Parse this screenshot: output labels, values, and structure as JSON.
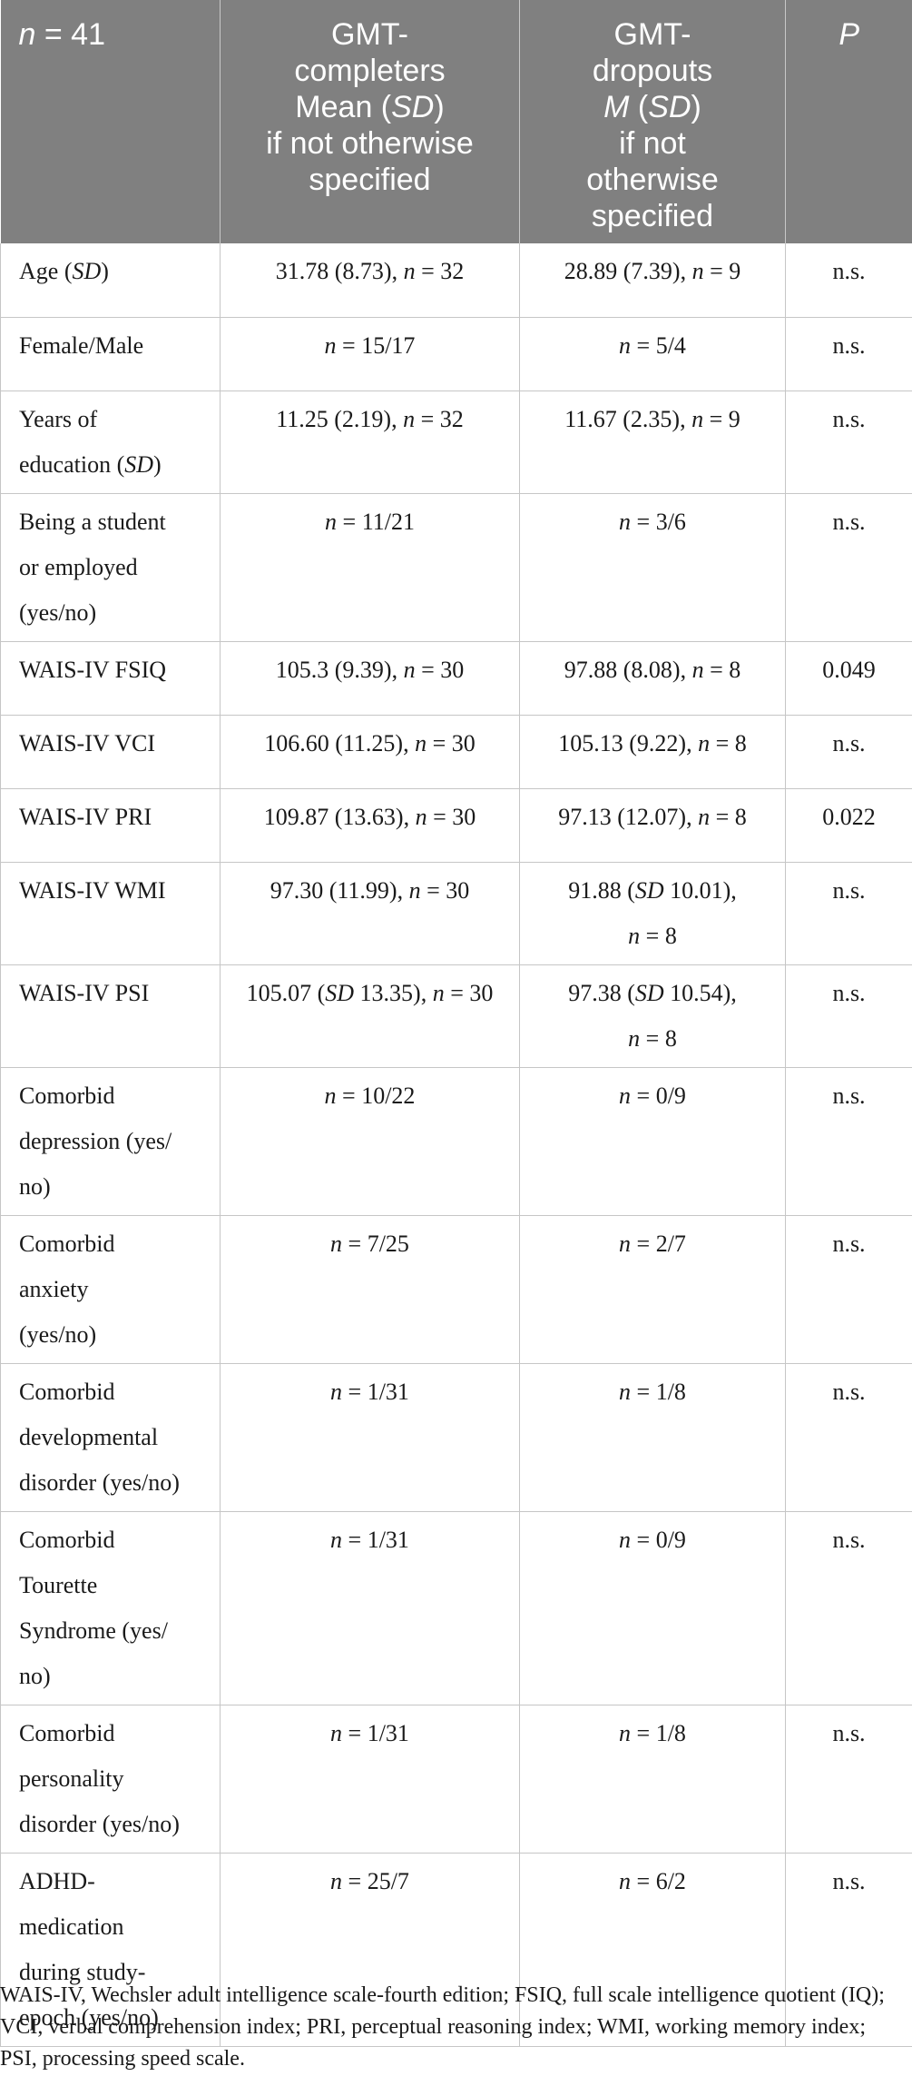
{
  "table": {
    "headers": [
      {
        "parts": [
          {
            "t": "n",
            "i": true
          },
          {
            "t": " = 41",
            "i": false
          }
        ]
      },
      {
        "parts": [
          {
            "t": "GMT-\ncompleters\nMean (",
            "i": false
          },
          {
            "t": "SD",
            "i": true
          },
          {
            "t": ")\nif not otherwise\nspecified",
            "i": false
          }
        ]
      },
      {
        "parts": [
          {
            "t": "GMT-\ndropouts\n",
            "i": false
          },
          {
            "t": "M",
            "i": true
          },
          {
            "t": " (",
            "i": false
          },
          {
            "t": "SD",
            "i": true
          },
          {
            "t": ")\nif not\notherwise\nspecified",
            "i": false
          }
        ]
      },
      {
        "parts": [
          {
            "t": "P",
            "i": true
          }
        ]
      }
    ],
    "rows": [
      [
        [
          {
            "t": "Age (",
            "i": false
          },
          {
            "t": "SD",
            "i": true
          },
          {
            "t": ")",
            "i": false
          }
        ],
        [
          {
            "t": "31.78 (8.73), ",
            "i": false
          },
          {
            "t": "n",
            "i": true
          },
          {
            "t": " = 32",
            "i": false
          }
        ],
        [
          {
            "t": "28.89 (7.39), ",
            "i": false
          },
          {
            "t": "n",
            "i": true
          },
          {
            "t": " = 9",
            "i": false
          }
        ],
        [
          {
            "t": "n.s.",
            "i": false
          }
        ]
      ],
      [
        [
          {
            "t": "Female/Male",
            "i": false
          }
        ],
        [
          {
            "t": "n",
            "i": true
          },
          {
            "t": " = 15/17",
            "i": false
          }
        ],
        [
          {
            "t": "n",
            "i": true
          },
          {
            "t": " = 5/4",
            "i": false
          }
        ],
        [
          {
            "t": "n.s.",
            "i": false
          }
        ]
      ],
      [
        [
          {
            "t": "Years of\neducation (",
            "i": false
          },
          {
            "t": "SD",
            "i": true
          },
          {
            "t": ")",
            "i": false
          }
        ],
        [
          {
            "t": "11.25 (2.19), ",
            "i": false
          },
          {
            "t": "n",
            "i": true
          },
          {
            "t": " = 32",
            "i": false
          }
        ],
        [
          {
            "t": "11.67 (2.35), ",
            "i": false
          },
          {
            "t": "n",
            "i": true
          },
          {
            "t": " = 9",
            "i": false
          }
        ],
        [
          {
            "t": "n.s.",
            "i": false
          }
        ]
      ],
      [
        [
          {
            "t": "Being a student\nor employed\n(yes/no)",
            "i": false
          }
        ],
        [
          {
            "t": "n",
            "i": true
          },
          {
            "t": " = 11/21",
            "i": false
          }
        ],
        [
          {
            "t": "n",
            "i": true
          },
          {
            "t": " = 3/6",
            "i": false
          }
        ],
        [
          {
            "t": "n.s.",
            "i": false
          }
        ]
      ],
      [
        [
          {
            "t": "WAIS-IV FSIQ",
            "i": false
          }
        ],
        [
          {
            "t": "105.3 (9.39), ",
            "i": false
          },
          {
            "t": "n",
            "i": true
          },
          {
            "t": " = 30",
            "i": false
          }
        ],
        [
          {
            "t": "97.88 (8.08), ",
            "i": false
          },
          {
            "t": "n",
            "i": true
          },
          {
            "t": " = 8",
            "i": false
          }
        ],
        [
          {
            "t": "0.049",
            "i": false
          }
        ]
      ],
      [
        [
          {
            "t": "WAIS-IV VCI",
            "i": false
          }
        ],
        [
          {
            "t": "106.60 (11.25), ",
            "i": false
          },
          {
            "t": "n",
            "i": true
          },
          {
            "t": " = 30",
            "i": false
          }
        ],
        [
          {
            "t": "105.13 (9.22), ",
            "i": false
          },
          {
            "t": "n",
            "i": true
          },
          {
            "t": " = 8",
            "i": false
          }
        ],
        [
          {
            "t": "n.s.",
            "i": false
          }
        ]
      ],
      [
        [
          {
            "t": "WAIS-IV PRI",
            "i": false
          }
        ],
        [
          {
            "t": "109.87 (13.63), ",
            "i": false
          },
          {
            "t": "n",
            "i": true
          },
          {
            "t": " = 30",
            "i": false
          }
        ],
        [
          {
            "t": "97.13 (12.07), ",
            "i": false
          },
          {
            "t": "n",
            "i": true
          },
          {
            "t": " = 8",
            "i": false
          }
        ],
        [
          {
            "t": "0.022",
            "i": false
          }
        ]
      ],
      [
        [
          {
            "t": "WAIS-IV WMI",
            "i": false
          }
        ],
        [
          {
            "t": "97.30 (11.99), ",
            "i": false
          },
          {
            "t": "n",
            "i": true
          },
          {
            "t": " = 30",
            "i": false
          }
        ],
        [
          {
            "t": "91.88 (",
            "i": false
          },
          {
            "t": "SD",
            "i": true
          },
          {
            "t": " 10.01),\n",
            "i": false
          },
          {
            "t": "n",
            "i": true
          },
          {
            "t": " = 8",
            "i": false
          }
        ],
        [
          {
            "t": "n.s.",
            "i": false
          }
        ]
      ],
      [
        [
          {
            "t": "WAIS-IV PSI",
            "i": false
          }
        ],
        [
          {
            "t": "105.07 (",
            "i": false
          },
          {
            "t": "SD",
            "i": true
          },
          {
            "t": " 13.35), ",
            "i": false
          },
          {
            "t": "n",
            "i": true
          },
          {
            "t": " = 30",
            "i": false
          }
        ],
        [
          {
            "t": "97.38 (",
            "i": false
          },
          {
            "t": "SD",
            "i": true
          },
          {
            "t": " 10.54),\n",
            "i": false
          },
          {
            "t": "n",
            "i": true
          },
          {
            "t": " = 8",
            "i": false
          }
        ],
        [
          {
            "t": "n.s.",
            "i": false
          }
        ]
      ],
      [
        [
          {
            "t": "Comorbid\ndepression (yes/\nno)",
            "i": false
          }
        ],
        [
          {
            "t": "n",
            "i": true
          },
          {
            "t": " = 10/22",
            "i": false
          }
        ],
        [
          {
            "t": "n",
            "i": true
          },
          {
            "t": " = 0/9",
            "i": false
          }
        ],
        [
          {
            "t": "n.s.",
            "i": false
          }
        ]
      ],
      [
        [
          {
            "t": "Comorbid\nanxiety\n(yes/no)",
            "i": false
          }
        ],
        [
          {
            "t": "n",
            "i": true
          },
          {
            "t": " = 7/25",
            "i": false
          }
        ],
        [
          {
            "t": "n",
            "i": true
          },
          {
            "t": " = 2/7",
            "i": false
          }
        ],
        [
          {
            "t": "n.s.",
            "i": false
          }
        ]
      ],
      [
        [
          {
            "t": "Comorbid\ndevelopmental\ndisorder (yes/no)",
            "i": false
          }
        ],
        [
          {
            "t": "n",
            "i": true
          },
          {
            "t": " = 1/31",
            "i": false
          }
        ],
        [
          {
            "t": "n",
            "i": true
          },
          {
            "t": " = 1/8",
            "i": false
          }
        ],
        [
          {
            "t": "n.s.",
            "i": false
          }
        ]
      ],
      [
        [
          {
            "t": "Comorbid\nTourette\nSyndrome (yes/\nno)",
            "i": false
          }
        ],
        [
          {
            "t": "n",
            "i": true
          },
          {
            "t": " = 1/31",
            "i": false
          }
        ],
        [
          {
            "t": "n",
            "i": true
          },
          {
            "t": " = 0/9",
            "i": false
          }
        ],
        [
          {
            "t": "n.s.",
            "i": false
          }
        ]
      ],
      [
        [
          {
            "t": "Comorbid\npersonality\ndisorder (yes/no)",
            "i": false
          }
        ],
        [
          {
            "t": "n",
            "i": true
          },
          {
            "t": " = 1/31",
            "i": false
          }
        ],
        [
          {
            "t": "n",
            "i": true
          },
          {
            "t": " = 1/8",
            "i": false
          }
        ],
        [
          {
            "t": "n.s.",
            "i": false
          }
        ]
      ],
      [
        [
          {
            "t": "ADHD-\nmedication\nduring study-\nepoch (yes/no)",
            "i": false
          }
        ],
        [
          {
            "t": "n",
            "i": true
          },
          {
            "t": " = 25/7",
            "i": false
          }
        ],
        [
          {
            "t": "n",
            "i": true
          },
          {
            "t": " = 6/2",
            "i": false
          }
        ],
        [
          {
            "t": "n.s.",
            "i": false
          }
        ]
      ]
    ]
  },
  "footnote": "WAIS-IV, Wechsler adult intelligence scale-fourth edition; FSIQ, full scale intelligence quotient (IQ); VCI, verbal comprehension index; PRI, perceptual reasoning index; WMI, working memory index; PSI, processing speed scale."
}
